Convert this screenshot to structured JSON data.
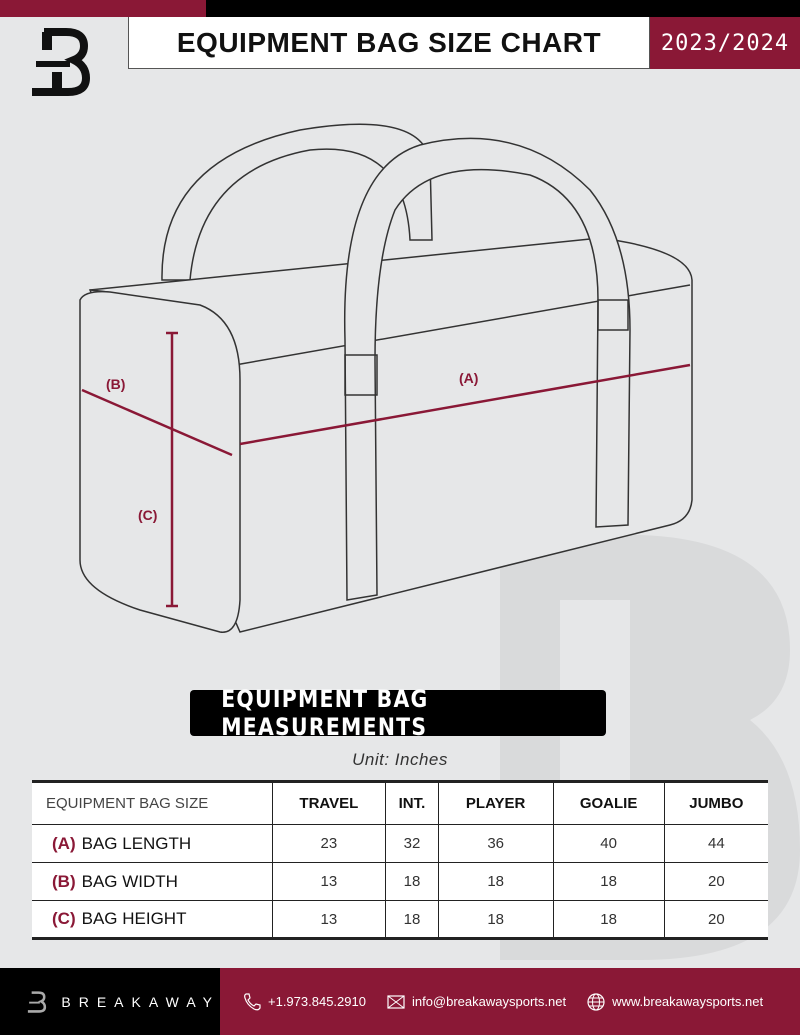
{
  "header": {
    "title": "EQUIPMENT BAG SIZE CHART",
    "season": "2023/2024"
  },
  "diagram": {
    "labels": {
      "a": "(A)",
      "b": "(B)",
      "c": "(C)"
    },
    "accent": "#8a1836"
  },
  "measurements": {
    "title": "EQUIPMENT BAG MEASUREMENTS",
    "unit": "Unit: Inches"
  },
  "table": {
    "header": "EQUIPMENT BAG SIZE",
    "columns": [
      "TRAVEL",
      "INT.",
      "PLAYER",
      "GOALIE",
      "JUMBO"
    ],
    "rows": [
      {
        "letter": "(A)",
        "label": "BAG LENGTH",
        "values": [
          "23",
          "32",
          "36",
          "40",
          "44"
        ]
      },
      {
        "letter": "(B)",
        "label": "BAG WIDTH",
        "values": [
          "13",
          "18",
          "18",
          "18",
          "20"
        ]
      },
      {
        "letter": "(C)",
        "label": "BAG HEIGHT",
        "values": [
          "13",
          "18",
          "18",
          "18",
          "20"
        ]
      }
    ]
  },
  "footer": {
    "brand": "BREAKAWAY",
    "phone": "+1.973.845.2910",
    "email": "info@breakawaysports.net",
    "website": "www.breakawaysports.net"
  },
  "colors": {
    "brand": "#8a1836",
    "background": "#e6e7e8"
  }
}
